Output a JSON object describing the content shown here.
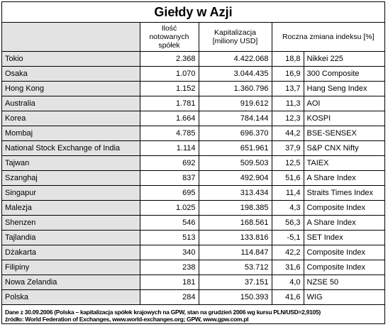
{
  "title": "Giełdy w Azji",
  "table": {
    "header": [
      "Ilość notowanych spółek",
      "Kapitalizacja [miliony USD]",
      "Roczna zmiana indeksu [%]"
    ],
    "rows": [
      [
        "Tokio",
        "2.368",
        "4.422.068",
        "18,8",
        "Nikkei 225"
      ],
      [
        "Osaka",
        "1.070",
        "3.044.435",
        "16,9",
        "300 Composite"
      ],
      [
        "Hong Kong",
        "1.152",
        "1.360.796",
        "13,7",
        "Hang Seng Index"
      ],
      [
        "Australia",
        "1.781",
        "919.612",
        "11,3",
        "AOI"
      ],
      [
        "Korea",
        "1.664",
        "784.144",
        "12,3",
        "KOSPI"
      ],
      [
        "Mombaj",
        "4.785",
        "696.370",
        "44,2",
        "BSE-SENSEX"
      ],
      [
        "National Stock Exchange of India",
        "1.114",
        "651.961",
        "37,9",
        "S&P CNX Nifty"
      ],
      [
        "Tajwan",
        "692",
        "509.503",
        "12,5",
        "TAIEX"
      ],
      [
        "Szanghaj",
        "837",
        "492.904",
        "51,6",
        "A Share Index"
      ],
      [
        "Singapur",
        "695",
        "313.434",
        "11,4",
        "Straits Times Index"
      ],
      [
        "Malezja",
        "1.025",
        "198.385",
        "4,3",
        "Composite Index"
      ],
      [
        "Shenzen",
        "546",
        "168.561",
        "56,3",
        "A Share Index"
      ],
      [
        "Tajlandia",
        "513",
        "133.816",
        "-5,1",
        "SET Index"
      ],
      [
        "Dżakarta",
        "340",
        "114.847",
        "42,2",
        "Composite Index"
      ],
      [
        "Filipiny",
        "238",
        "53.712",
        "31,6",
        "Composite Index"
      ],
      [
        "Nowa Zelandia",
        "181",
        "37.151",
        "4,0",
        "NZSE 50"
      ],
      [
        "Polska",
        "284",
        "150.393",
        "41,6",
        "WIG"
      ]
    ]
  },
  "footer": [
    "Dane z 30.09.2006 (Polska – kapitalizacja spółek krajowych na GPW, stan na grudzień 2006 wg kursu PLN/USD=2,9105)",
    "źródło: World Federation of Exchanges, www.world-exchanges.org; GPW, www.gpw.com.pl"
  ]
}
